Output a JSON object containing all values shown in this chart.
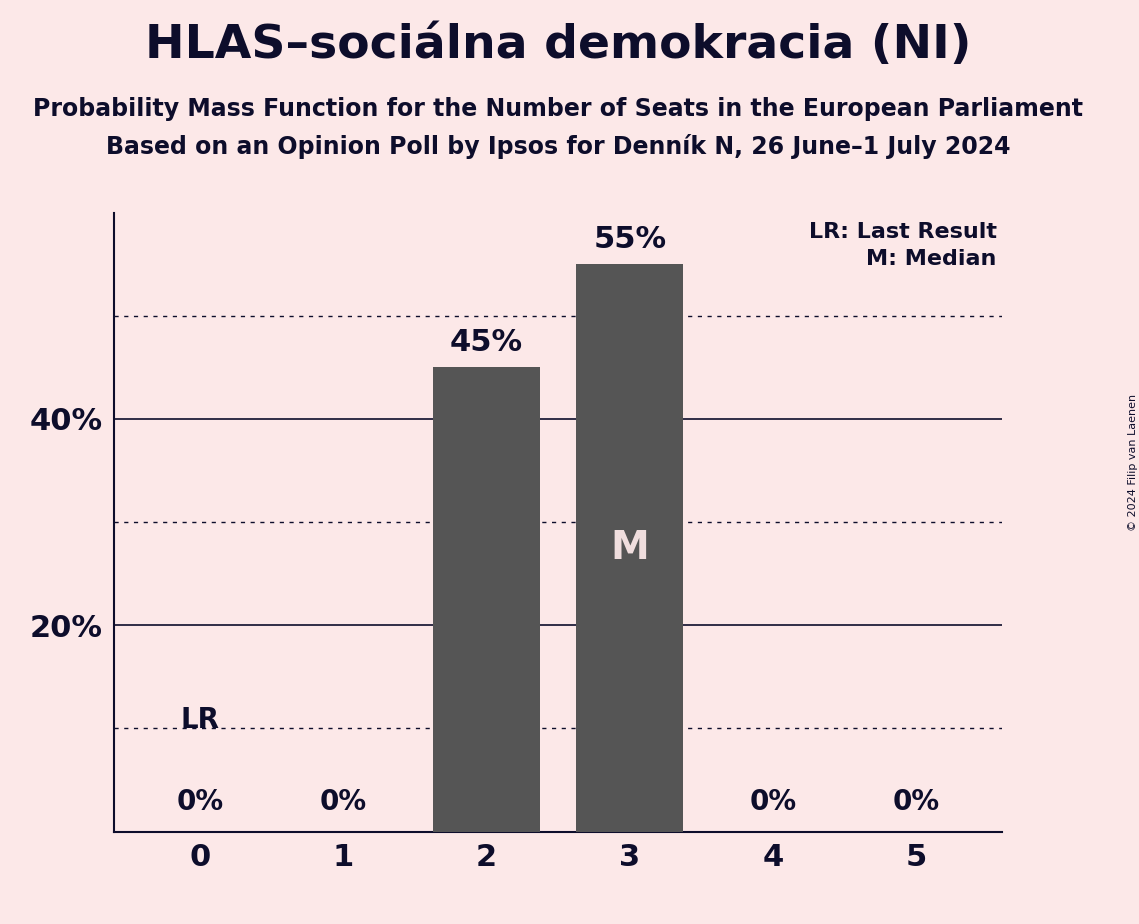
{
  "title": "HLAS–sociálna demokracia (NI)",
  "subtitle1": "Probability Mass Function for the Number of Seats in the European Parliament",
  "subtitle2": "Based on an Opinion Poll by Ipsos for Denník N, 26 June–1 July 2024",
  "copyright": "© 2024 Filip van Laenen",
  "categories": [
    0,
    1,
    2,
    3,
    4,
    5
  ],
  "values": [
    0,
    0,
    45,
    55,
    0,
    0
  ],
  "bar_color": "#555555",
  "background_color": "#fce8e8",
  "text_color": "#0d0d2b",
  "median": 3,
  "last_result": 0,
  "ylim": [
    0,
    60
  ],
  "dotted_lines": [
    10,
    30,
    50
  ],
  "solid_lines": [
    20,
    40
  ],
  "annotation_LR": "LR",
  "annotation_M": "M",
  "legend_LR": "LR: Last Result",
  "legend_M": "M: Median",
  "bar_width": 0.75
}
